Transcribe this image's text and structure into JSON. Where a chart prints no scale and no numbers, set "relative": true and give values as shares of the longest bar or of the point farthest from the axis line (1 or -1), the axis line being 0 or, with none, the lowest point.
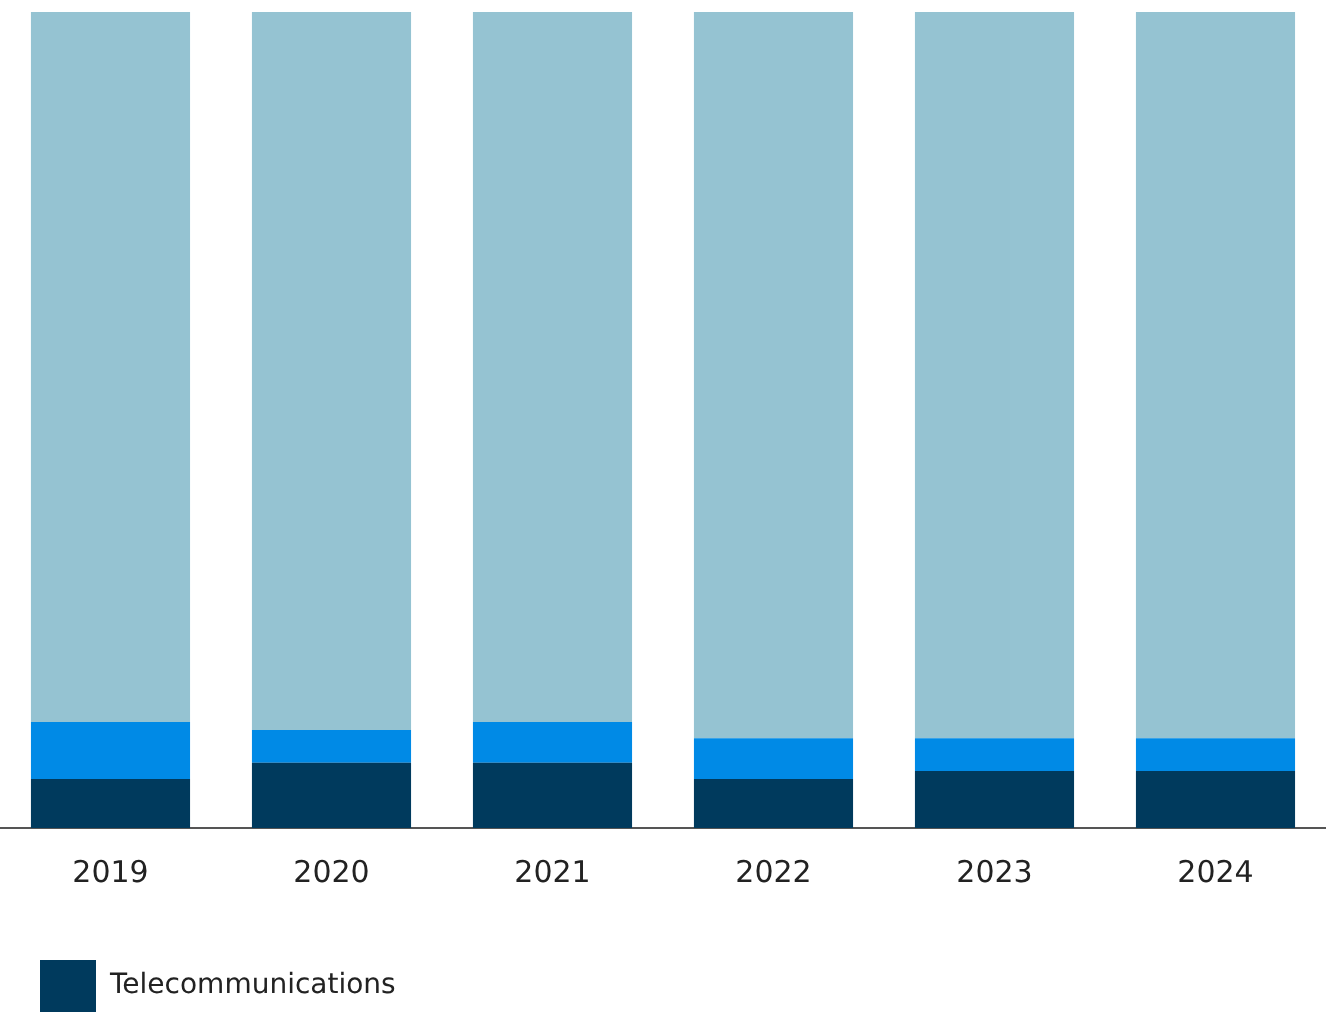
{
  "chart_data": {
    "type": "bar",
    "stacked": true,
    "relative": true,
    "legend": "bottom left",
    "categories": [
      "2019",
      "2020",
      "2021",
      "2022",
      "2023",
      "2024"
    ],
    "series": [
      {
        "name": "Telecommunications",
        "color": "#003a5d",
        "values": [
          0.06,
          0.08,
          0.08,
          0.06,
          0.07,
          0.07
        ]
      },
      {
        "color": "#008ae6",
        "values": [
          0.07,
          0.04,
          0.05,
          0.05,
          0.04,
          0.04
        ]
      },
      {
        "color": "#95c3d2",
        "values": [
          0.87,
          0.88,
          0.87,
          0.89,
          0.89,
          0.89
        ]
      }
    ]
  }
}
